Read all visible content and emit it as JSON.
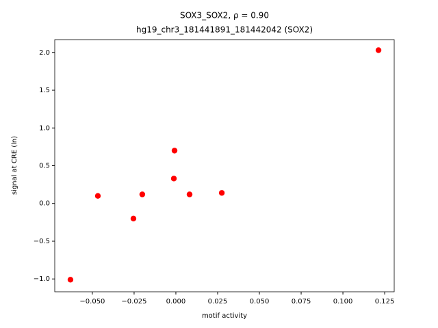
{
  "chart_data": {
    "type": "scatter",
    "title": "SOX3_SOX2, ρ = 0.90",
    "subtitle": "hg19_chr3_181441891_181442042 (SOX2)",
    "x_label": "motif activity",
    "y_label": "signal at CRE (ln)",
    "color": "#ff0000",
    "x": [
      -0.0631,
      -0.0467,
      -0.0254,
      -0.0201,
      -0.0012,
      -0.0008,
      0.0082,
      0.0275,
      0.1213
    ],
    "values": [
      -1.01,
      0.1,
      -0.2,
      0.12,
      0.33,
      0.7,
      0.12,
      0.14,
      2.03
    ],
    "xlim": [
      -0.0725,
      0.1307
    ],
    "ylim": [
      -1.17,
      2.17
    ],
    "xticks": [
      {
        "value": -0.05,
        "label": "−0.050"
      },
      {
        "value": -0.025,
        "label": "−0.025"
      },
      {
        "value": 0,
        "label": "0.000"
      },
      {
        "value": 0.025,
        "label": "0.025"
      },
      {
        "value": 0.05,
        "label": "0.050"
      },
      {
        "value": 0.075,
        "label": "0.075"
      },
      {
        "value": 0.1,
        "label": "0.100"
      },
      {
        "value": 0.125,
        "label": "0.125"
      }
    ],
    "yticks": [
      {
        "value": -1,
        "label": "−1.0"
      },
      {
        "value": -0.5,
        "label": "−0.5"
      },
      {
        "value": 0,
        "label": "0.0"
      },
      0.5,
      {
        "value": 1,
        "label": "1.0"
      },
      1.5,
      {
        "value": 2,
        "label": "2.0"
      }
    ],
    "grid": false
  }
}
